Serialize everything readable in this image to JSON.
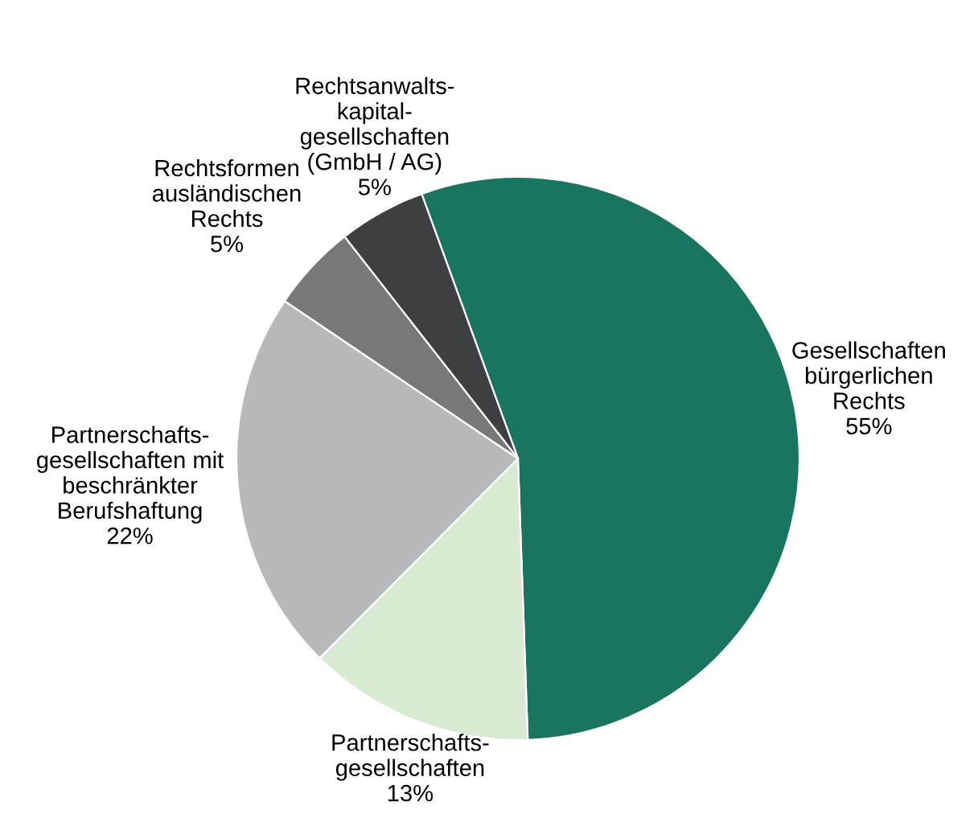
{
  "chart_data": {
    "type": "pie",
    "categories": [
      "Gesellschaften\nbürgerlichen\nRechts",
      "Partnerschafts-\ngesellschaften",
      "Partnerschafts-\ngesellschaften mit\nbeschränkter\nBerufshaftung",
      "Rechtsformen\nausländischen\nRechts",
      "Rechtsanwalts-\nkapital-\ngesellschaften\n(GmbH / AG)"
    ],
    "values": [
      55,
      13,
      22,
      5,
      5
    ],
    "value_labels": [
      "55%",
      "13%",
      "22%",
      "5%",
      "5%"
    ],
    "colors": [
      "#1a7560",
      "#d9ead3",
      "#b7b8ba",
      "#76787c",
      "#3d3f42"
    ]
  }
}
